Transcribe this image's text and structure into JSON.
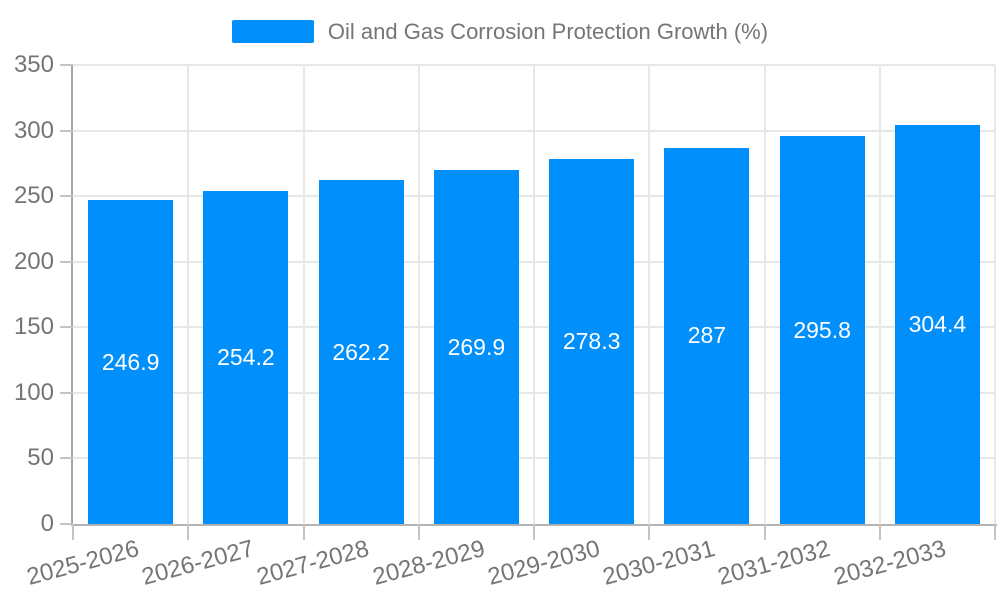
{
  "legend": {
    "label": "Oil and Gas Corrosion Protection Growth (%)",
    "swatch_color": "#008FFB"
  },
  "chart_data": {
    "type": "bar",
    "title": "Oil and Gas Corrosion Protection Growth (%)",
    "xlabel": "",
    "ylabel": "",
    "categories": [
      "2025-2026",
      "2026-2027",
      "2027-2028",
      "2028-2029",
      "2029-2030",
      "2030-2031",
      "2031-2032",
      "2032-2033"
    ],
    "values": [
      246.9,
      254.2,
      262.2,
      269.9,
      278.3,
      287,
      295.8,
      304.4
    ],
    "value_labels": [
      "246.9",
      "254.2",
      "262.2",
      "269.9",
      "278.3",
      "287",
      "295.8",
      "304.4"
    ],
    "ylim": [
      0,
      350
    ],
    "yticks": [
      0,
      50,
      100,
      150,
      200,
      250,
      300,
      350
    ],
    "grid": true,
    "legend_position": "top",
    "xlabel_rotation_deg": -15,
    "colors": {
      "bar": "#008FFB",
      "grid": "#e7e7e7",
      "axis": "#a6a6a6",
      "tick": "#c4c4c4",
      "label_text": "#757575",
      "value_label_text": "#ffffff",
      "background": "#ffffff"
    }
  }
}
